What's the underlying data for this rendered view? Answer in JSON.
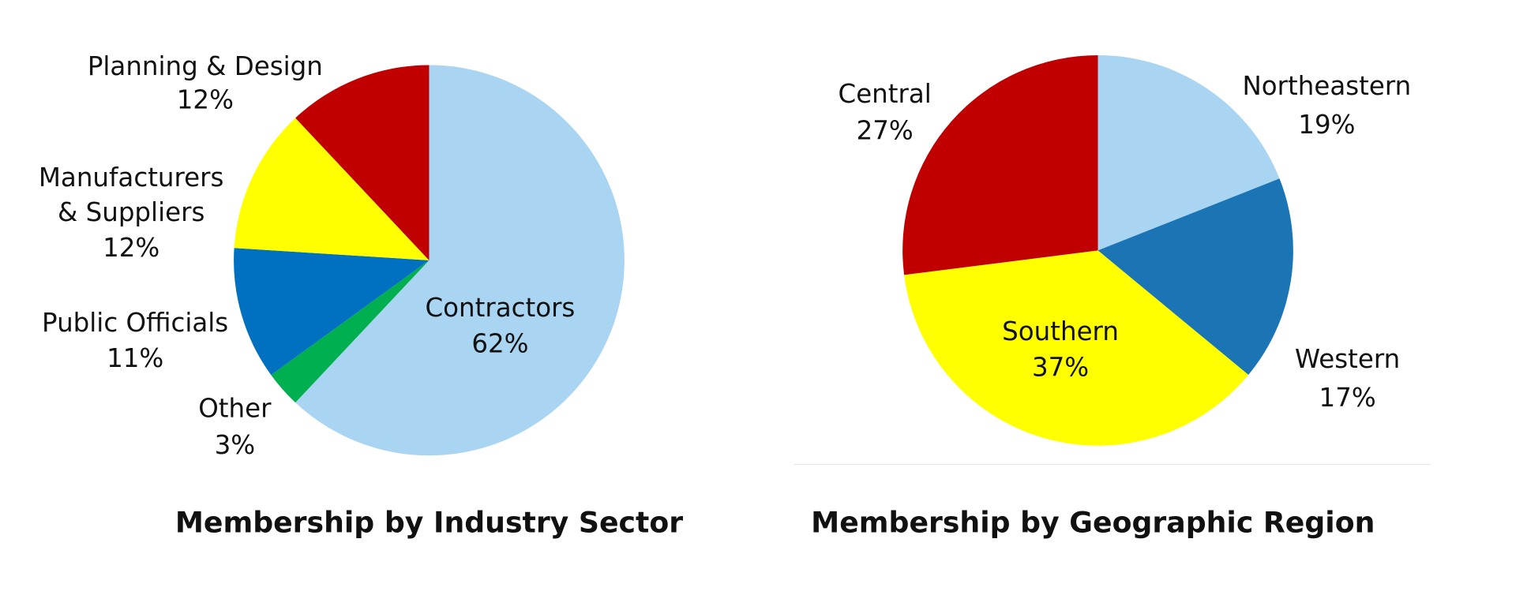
{
  "chart_data": [
    {
      "type": "pie",
      "title": "Membership by Industry Sector",
      "categories": [
        "Contractors",
        "Other",
        "Public Officials",
        "Manufacturers & Suppliers",
        "Planning & Design"
      ],
      "values": [
        62,
        3,
        11,
        12,
        12
      ],
      "value_labels": [
        "62%",
        "3%",
        "11%",
        "12%",
        "12%"
      ],
      "colors": [
        "#a9d4f2",
        "#00b050",
        "#0070c0",
        "#ffff00",
        "#c00000"
      ]
    },
    {
      "type": "pie",
      "title": "Membership by Geographic Region",
      "categories": [
        "Northeastern",
        "Western",
        "Southern",
        "Central"
      ],
      "values": [
        19,
        17,
        37,
        27
      ],
      "value_labels": [
        "19%",
        "17%",
        "37%",
        "27%"
      ],
      "colors": [
        "#a9d4f2",
        "#1b75b5",
        "#ffff00",
        "#c00000"
      ]
    }
  ]
}
